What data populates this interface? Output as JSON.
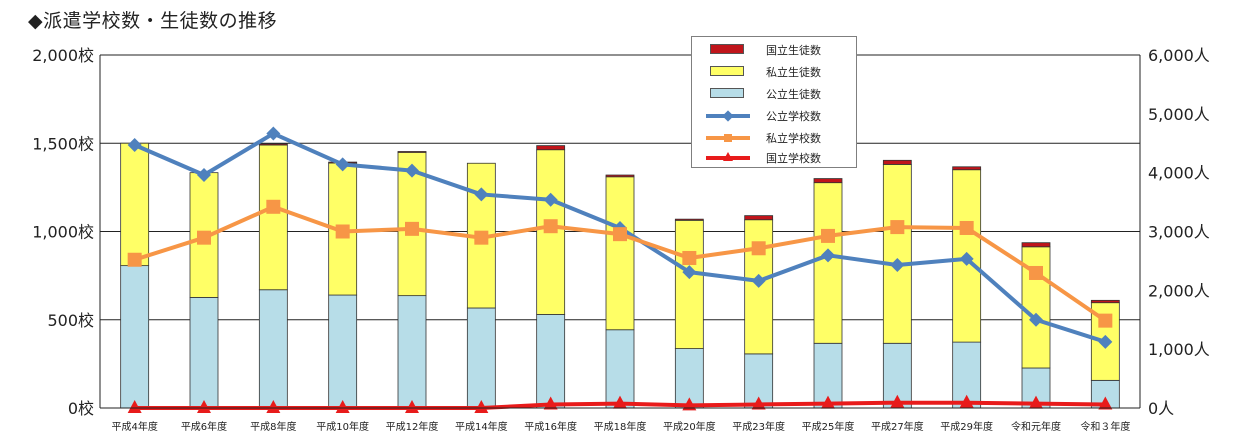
{
  "page": {
    "title": "◆派遣学校数・生徒数の推移"
  },
  "chart_data": {
    "type": "bar+line",
    "title": "◆派遣学校数・生徒数の推移",
    "categories": [
      "平成4年度",
      "平成6年度",
      "平成8年度",
      "平成10年度",
      "平成12年度",
      "平成14年度",
      "平成16年度",
      "平成18年度",
      "平成20年度",
      "平成23年度",
      "平成25年度",
      "平成27年度",
      "平成29年度",
      "令和元年度",
      "令和３年度"
    ],
    "left_axis": {
      "range": [
        0,
        2000
      ],
      "ticks": [
        0,
        500,
        1000,
        1500,
        2000
      ],
      "tick_labels": [
        "0校",
        "500校",
        "1,000校",
        "1,500校",
        "2,000校"
      ]
    },
    "right_axis": {
      "range": [
        0,
        6000
      ],
      "ticks": [
        0,
        1000,
        2000,
        3000,
        4000,
        5000,
        6000
      ],
      "tick_labels": [
        "0人",
        "1,000人",
        "2,000人",
        "3,000人",
        "4,000人",
        "5,000人",
        "6,000人"
      ]
    },
    "grid": "horizontal",
    "legend_position": "top-center",
    "bar_series": [
      {
        "name": "公立生徒数",
        "color": "#b7dde8",
        "axis": "right",
        "values": [
          2420,
          1880,
          2010,
          1920,
          1910,
          1700,
          1590,
          1330,
          1010,
          920,
          1100,
          1100,
          1120,
          680,
          470
        ]
      },
      {
        "name": "私立生徒数",
        "color": "#ffff66",
        "axis": "right",
        "values": [
          2080,
          2120,
          2460,
          2250,
          2440,
          2460,
          2800,
          2600,
          2180,
          2280,
          2730,
          3040,
          2930,
          2060,
          1320
        ]
      },
      {
        "name": "国立生徒数",
        "color": "#c0151b",
        "axis": "right",
        "values": [
          0,
          0,
          20,
          10,
          10,
          0,
          70,
          30,
          20,
          70,
          70,
          70,
          50,
          70,
          40
        ]
      }
    ],
    "line_series": [
      {
        "name": "公立学校数",
        "color": "#4f81bd",
        "marker": "diamond",
        "axis": "left",
        "values": [
          1490,
          1320,
          1555,
          1380,
          1345,
          1210,
          1180,
          1020,
          770,
          720,
          865,
          810,
          845,
          500,
          375
        ]
      },
      {
        "name": "私立学校数",
        "color": "#f79646",
        "marker": "square",
        "axis": "left",
        "values": [
          840,
          965,
          1140,
          1000,
          1015,
          965,
          1030,
          985,
          850,
          905,
          975,
          1025,
          1020,
          765,
          495
        ]
      },
      {
        "name": "国立学校数",
        "color": "#e81b1b",
        "marker": "triangle",
        "axis": "left",
        "values": [
          0,
          0,
          0,
          0,
          0,
          0,
          20,
          25,
          15,
          20,
          25,
          30,
          30,
          25,
          20
        ]
      }
    ]
  }
}
